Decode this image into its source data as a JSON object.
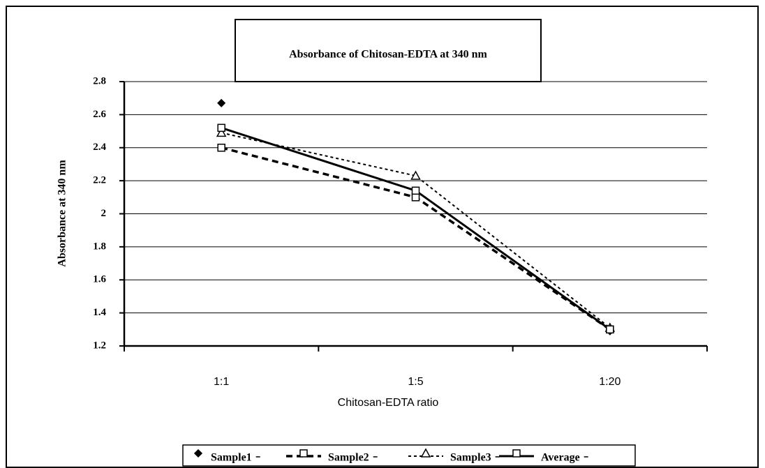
{
  "chart_data": {
    "type": "line",
    "title": "Absorbance of Chitosan-EDTA at 340 nm",
    "x_label": "Chitosan-EDTA ratio",
    "y_label": "Absorbance at 340 nm",
    "categories": [
      "1:1",
      "1:5",
      "1:20"
    ],
    "series": [
      {
        "name": "Sample1",
        "color": "#000000",
        "line_style": "none",
        "marker": "diamond",
        "values": [
          2.67,
          2.11,
          1.29
        ]
      },
      {
        "name": "Sample2",
        "color": "#000000",
        "line_style": "dashed",
        "marker": "square",
        "values": [
          2.4,
          2.1,
          1.3
        ]
      },
      {
        "name": "Sample3",
        "color": "#000000",
        "line_style": "dotted",
        "marker": "triangle",
        "values": [
          2.49,
          2.23,
          1.31
        ]
      },
      {
        "name": "Average",
        "color": "#000000",
        "line_style": "solid",
        "marker": "square",
        "values": [
          2.52,
          2.14,
          1.3
        ]
      }
    ],
    "ylim": [
      1.2,
      2.8
    ],
    "yticks": [
      1.2,
      1.4,
      1.6,
      1.8,
      2,
      2.2,
      2.4,
      2.6,
      2.8
    ],
    "grid": true,
    "legend": "bottom"
  }
}
